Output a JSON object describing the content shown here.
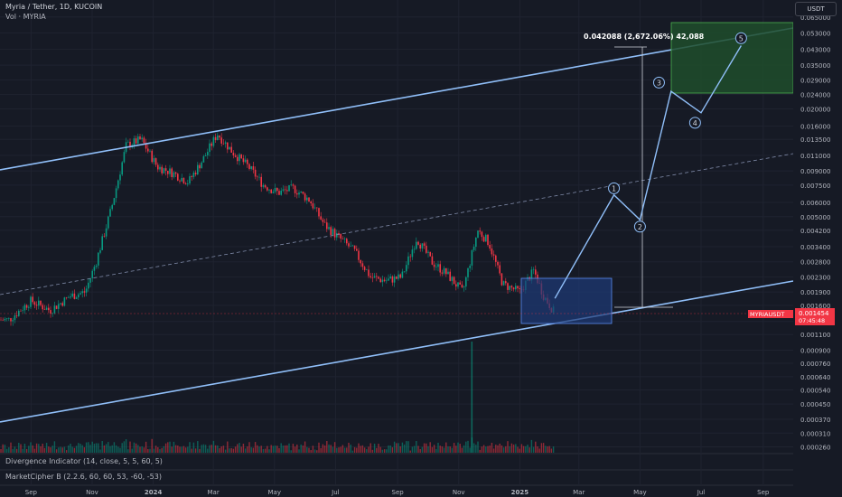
{
  "header": {
    "symbol_line": "Myria / Tether, 1D, KUCOIN",
    "volume_line": "Vol · MYRIA"
  },
  "currency_button": "USDT",
  "indicators": [
    "Divergence Indicator (14, close, 5, 5, 60, 5)",
    "MarketCipher B (2.2.6, 60, 60, 53, -60, -53)"
  ],
  "price_badge": {
    "symbol": "MYRIAUSDT",
    "price": "0.001454",
    "countdown": "07:45:48",
    "color": "#f23645"
  },
  "measure_label": "0.042088 (2,672.06%) 42,088",
  "colors": {
    "up": "#089981",
    "down": "#f23645",
    "channel": "#90bff9",
    "target_box": "#1f4d2b",
    "entry_box": "#1e3a78"
  },
  "chart_data": {
    "type": "candlestick",
    "scale": "log",
    "x_labels": [
      "Sep",
      "Nov",
      "2024",
      "Mar",
      "May",
      "Jul",
      "Sep",
      "Nov",
      "2025",
      "Mar",
      "May",
      "Jul",
      "Sep"
    ],
    "y_ticks": [
      "0.065000",
      "0.053000",
      "0.043000",
      "0.035000",
      "0.029000",
      "0.024000",
      "0.020000",
      "0.016000",
      "0.013500",
      "0.011000",
      "0.009000",
      "0.007500",
      "0.006000",
      "0.005000",
      "0.004200",
      "0.003400",
      "0.002800",
      "0.002300",
      "0.001900",
      "0.001600",
      "0.001300",
      "0.001100",
      "0.000900",
      "0.000760",
      "0.000640",
      "0.000540",
      "0.000450",
      "0.000370",
      "0.000310",
      "0.000260"
    ],
    "ylim": [
      0.00023,
      0.072
    ],
    "price_path": [
      {
        "x": "2023-08-10",
        "y": 0.00133
      },
      {
        "x": "2023-09-01",
        "y": 0.0017
      },
      {
        "x": "2023-09-20",
        "y": 0.0015
      },
      {
        "x": "2023-10-10",
        "y": 0.0018
      },
      {
        "x": "2023-10-25",
        "y": 0.0019
      },
      {
        "x": "2023-11-05",
        "y": 0.0028
      },
      {
        "x": "2023-11-20",
        "y": 0.0055
      },
      {
        "x": "2023-12-05",
        "y": 0.0125
      },
      {
        "x": "2023-12-20",
        "y": 0.0135
      },
      {
        "x": "2024-01-05",
        "y": 0.0095
      },
      {
        "x": "2024-01-20",
        "y": 0.0088
      },
      {
        "x": "2024-02-05",
        "y": 0.0078
      },
      {
        "x": "2024-02-20",
        "y": 0.0105
      },
      {
        "x": "2024-03-05",
        "y": 0.0145
      },
      {
        "x": "2024-03-20",
        "y": 0.0115
      },
      {
        "x": "2024-04-05",
        "y": 0.0095
      },
      {
        "x": "2024-04-20",
        "y": 0.0075
      },
      {
        "x": "2024-05-05",
        "y": 0.0068
      },
      {
        "x": "2024-05-20",
        "y": 0.0072
      },
      {
        "x": "2024-06-05",
        "y": 0.0062
      },
      {
        "x": "2024-06-20",
        "y": 0.0045
      },
      {
        "x": "2024-07-05",
        "y": 0.0038
      },
      {
        "x": "2024-07-20",
        "y": 0.0032
      },
      {
        "x": "2024-08-05",
        "y": 0.0023
      },
      {
        "x": "2024-08-20",
        "y": 0.0022
      },
      {
        "x": "2024-09-05",
        "y": 0.0023
      },
      {
        "x": "2024-09-20",
        "y": 0.0038
      },
      {
        "x": "2024-10-05",
        "y": 0.0028
      },
      {
        "x": "2024-10-20",
        "y": 0.0024
      },
      {
        "x": "2024-11-05",
        "y": 0.0019
      },
      {
        "x": "2024-11-20",
        "y": 0.0042
      },
      {
        "x": "2024-12-01",
        "y": 0.0036
      },
      {
        "x": "2024-12-15",
        "y": 0.0021
      },
      {
        "x": "2025-01-01",
        "y": 0.0019
      },
      {
        "x": "2025-01-15",
        "y": 0.0025
      },
      {
        "x": "2025-01-25",
        "y": 0.0018
      },
      {
        "x": "2025-02-05",
        "y": 0.00145
      }
    ],
    "projection": [
      {
        "label": "",
        "x": "2025-02-05",
        "y": 0.00175
      },
      {
        "label": "1",
        "x": "2025-04-05",
        "y": 0.0066
      },
      {
        "label": "2",
        "x": "2025-05-01",
        "y": 0.0048
      },
      {
        "label": "3",
        "x": "2025-06-01",
        "y": 0.025
      },
      {
        "label": "4",
        "x": "2025-07-01",
        "y": 0.019
      },
      {
        "label": "5",
        "x": "2025-08-10",
        "y": 0.045
      }
    ],
    "markers": [
      {
        "label": "1",
        "x": "2025-04-05",
        "y": 0.0072
      },
      {
        "label": "2",
        "x": "2025-05-01",
        "y": 0.0044
      },
      {
        "label": "3",
        "x": "2025-05-20",
        "y": 0.028
      },
      {
        "label": "4",
        "x": "2025-06-25",
        "y": 0.0167
      },
      {
        "label": "5",
        "x": "2025-08-10",
        "y": 0.0495
      }
    ]
  }
}
